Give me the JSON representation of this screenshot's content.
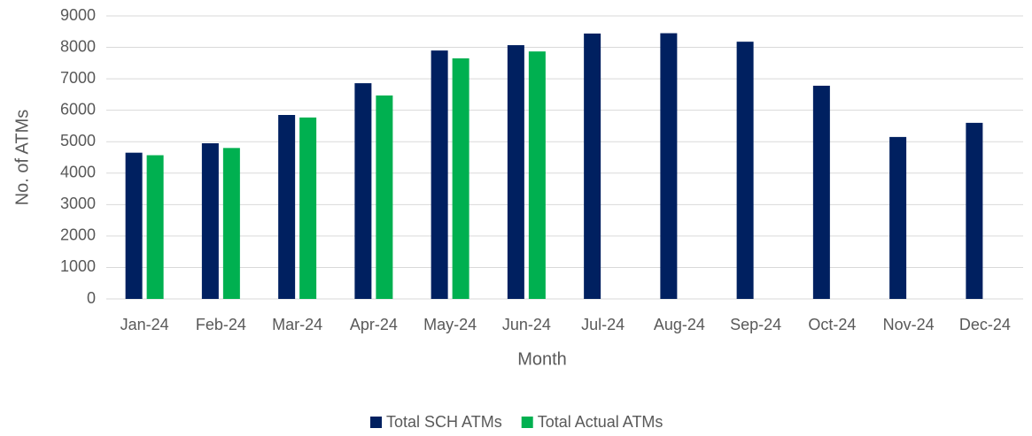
{
  "chart_data": {
    "type": "bar",
    "categories": [
      "Jan-24",
      "Feb-24",
      "Mar-24",
      "Apr-24",
      "May-24",
      "Jun-24",
      "Jul-24",
      "Aug-24",
      "Sep-24",
      "Oct-24",
      "Nov-24",
      "Dec-24"
    ],
    "series": [
      {
        "name": "Total SCH ATMs",
        "color": "#002060",
        "values": [
          4650,
          4950,
          5850,
          6860,
          7900,
          8070,
          8440,
          8450,
          8180,
          6780,
          5150,
          5600
        ]
      },
      {
        "name": "Total Actual ATMs",
        "color": "#00b050",
        "values": [
          4570,
          4800,
          5770,
          6470,
          7650,
          7870,
          null,
          null,
          null,
          null,
          null,
          null
        ]
      }
    ],
    "xlabel": "Month",
    "ylabel": "No. of ATMs",
    "ylim": [
      0,
      9000
    ],
    "yticks": [
      0,
      1000,
      2000,
      3000,
      4000,
      5000,
      6000,
      7000,
      8000,
      9000
    ],
    "grid": true,
    "legend": "bottom"
  }
}
